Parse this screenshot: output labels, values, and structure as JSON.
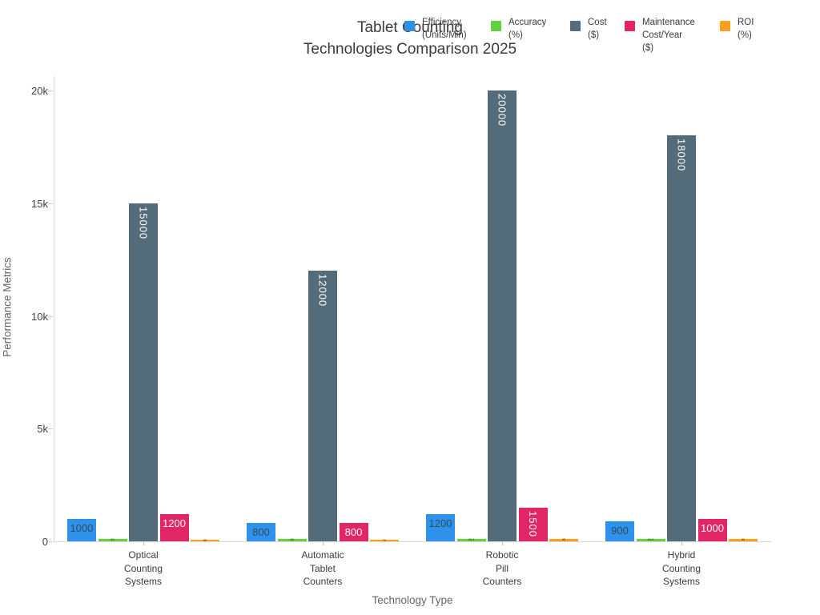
{
  "title": {
    "line1": "Tablet Counting",
    "line2": "Technologies Comparison 2025"
  },
  "axes": {
    "x_title": "Technology Type",
    "y_title": "Performance Metrics",
    "y_tick_labels": [
      "0",
      "5k",
      "10k",
      "15k",
      "20k"
    ],
    "y_tick_values": [
      0,
      5000,
      10000,
      15000,
      20000
    ]
  },
  "colors": {
    "efficiency": "#2e92eb",
    "accuracy": "#62d13b",
    "cost": "#546c7a",
    "maintenance": "#e22564",
    "roi": "#f8a11d",
    "axis_line": "#d9d9d9",
    "title_text": "#3b3b3b",
    "muted_text": "#666666",
    "label_on_blue": "#2f4d5d",
    "label_on_dark": "#ffffff"
  },
  "legend": {
    "items": [
      {
        "name": "Efficiency (Units/Min)",
        "lines": "Efficiency\n(Units/Min)",
        "color": "#2e92eb"
      },
      {
        "name": "Accuracy (%)",
        "lines": "Accuracy\n(%)",
        "color": "#62d13b"
      },
      {
        "name": "Cost ($)",
        "lines": "Cost\n($)",
        "color": "#546c7a"
      },
      {
        "name": "Maintenance Cost/Year ($)",
        "lines": "Maintenance\nCost/Year\n($)",
        "color": "#e22564"
      },
      {
        "name": "ROI (%)",
        "lines": "ROI\n(%)",
        "color": "#f8a11d"
      }
    ]
  },
  "chart_data": {
    "type": "bar",
    "title": "Tablet Counting Technologies Comparison 2025",
    "xlabel": "Technology Type",
    "ylabel": "Performance Metrics",
    "ylim": [
      0,
      20000
    ],
    "grid": false,
    "legend_position": "top",
    "categories": [
      "Optical Counting Systems",
      "Automatic Tablet Counters",
      "Robotic Pill Counters",
      "Hybrid Counting Systems"
    ],
    "category_display_lines": [
      "Optical\nCounting\nSystems",
      "Automatic\nTablet\nCounters",
      "Robotic\nPill\nCounters",
      "Hybrid\nCounting\nSystems"
    ],
    "series": [
      {
        "name": "Efficiency (Units/Min)",
        "color": "#2e92eb",
        "values": [
          1000,
          800,
          1200,
          900
        ],
        "labels": [
          "1000",
          "800",
          "1200",
          "900"
        ],
        "label_color": "#2f4d5d",
        "label_rotated": [
          false,
          false,
          false,
          false
        ],
        "tiny_labels": false
      },
      {
        "name": "Accuracy (%)",
        "color": "#62d13b",
        "values": [
          99,
          98,
          99.9,
          99.5
        ],
        "labels": [
          "99",
          "98",
          "99.9",
          "99.5"
        ],
        "label_color": "#333333",
        "label_rotated": [
          false,
          false,
          false,
          false
        ],
        "tiny_labels": true
      },
      {
        "name": "Cost ($)",
        "color": "#546c7a",
        "values": [
          15000,
          12000,
          20000,
          18000
        ],
        "labels": [
          "15000",
          "12000",
          "20000",
          "18000"
        ],
        "label_color": "#ffffff",
        "label_rotated": [
          true,
          true,
          true,
          true
        ],
        "tiny_labels": false
      },
      {
        "name": "Maintenance Cost/Year ($)",
        "color": "#e22564",
        "values": [
          1200,
          800,
          1500,
          1000
        ],
        "labels": [
          "1200",
          "800",
          "1500",
          "1000"
        ],
        "label_color": "#ffffff",
        "label_rotated": [
          false,
          false,
          true,
          false
        ],
        "tiny_labels": false
      },
      {
        "name": "ROI (%)",
        "color": "#f8a11d",
        "values": [
          85,
          70,
          95,
          90
        ],
        "labels": [
          "85",
          "70",
          "95",
          "90"
        ],
        "label_color": "#333333",
        "label_rotated": [
          false,
          false,
          false,
          false
        ],
        "tiny_labels": true
      }
    ]
  }
}
